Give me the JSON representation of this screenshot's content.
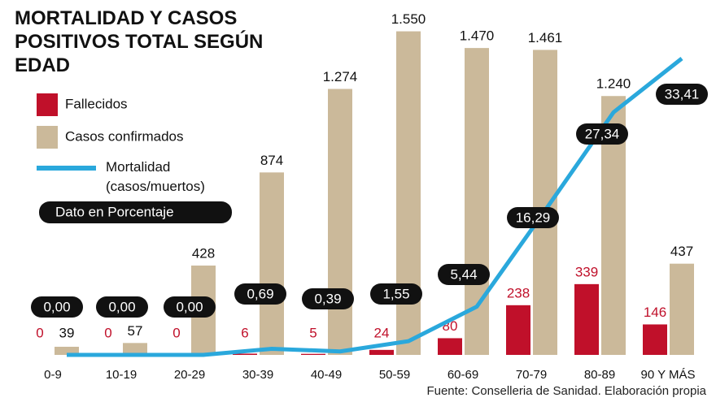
{
  "chart_data": {
    "type": "bar-line",
    "title": "MORTALIDAD Y CASOS POSITIVOS TOTAL SEGÚN EDAD",
    "note": "Dato en Porcentaje",
    "source": "Fuente: Conselleria de Sanidad. Elaboración propia",
    "categories": [
      "0-9",
      "10-19",
      "20-29",
      "30-39",
      "40-49",
      "50-59",
      "60-69",
      "70-79",
      "80-89",
      "90 Y MÁS"
    ],
    "ylim": [
      0,
      1700
    ],
    "y2lim": [
      0,
      40
    ],
    "series": [
      {
        "name": "Fallecidos",
        "color": "#c0102a",
        "values": [
          0,
          0,
          0,
          6,
          5,
          24,
          80,
          238,
          339,
          146
        ]
      },
      {
        "name": "Casos confirmados",
        "color": "#cbb99a",
        "values": [
          39,
          57,
          428,
          874,
          1274,
          1550,
          1470,
          1461,
          1240,
          437
        ],
        "value_labels": [
          "39",
          "57",
          "428",
          "874",
          "1.274",
          "1.550",
          "1.470",
          "1.461",
          "1.240",
          "437"
        ]
      },
      {
        "name": "Mortalidad (casos/muertos)",
        "color": "#2aa8dc",
        "type": "line",
        "axis": "y2",
        "values": [
          0.0,
          0.0,
          0.0,
          0.69,
          0.39,
          1.55,
          5.44,
          16.29,
          27.34,
          33.41
        ],
        "value_labels": [
          "0,00",
          "0,00",
          "0,00",
          "0,69",
          "0,39",
          "1,55",
          "5,44",
          "16,29",
          "27,34",
          "33,41"
        ]
      }
    ]
  }
}
